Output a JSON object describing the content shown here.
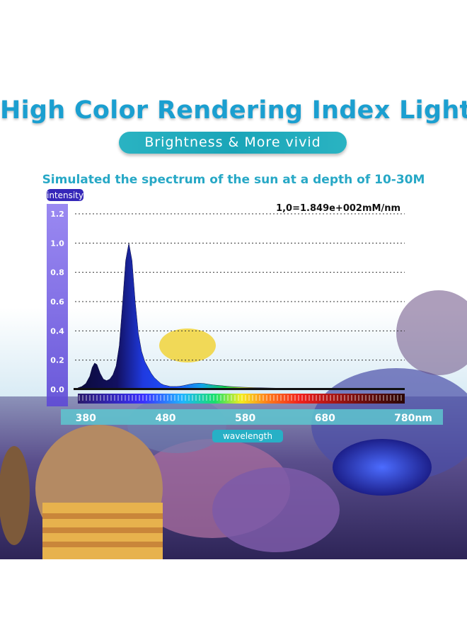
{
  "header": {
    "title": "High Color Rendering Index Lights",
    "tagline": "Brightness & More vivid",
    "subtitle": "Simulated the spectrum of the sun at a depth of 10-30M"
  },
  "colors": {
    "title": "#1b9fd0",
    "pill": "#1aa5b8",
    "intensity_bar": "#7b66e6",
    "peak_fill": "#1a2ad8"
  },
  "chart_data": {
    "type": "area",
    "title": "",
    "annotation": "1,0=1.849e+002mM/nm",
    "ylabel": "intensity",
    "xlabel": "wavelength",
    "x_unit_suffix": "nm",
    "ylim": [
      0,
      1.2
    ],
    "xlim": [
      370,
      780
    ],
    "yticks": [
      "0.0",
      "0.2",
      "0.4",
      "0.6",
      "0.8",
      "1.0",
      "1.2"
    ],
    "xticks": [
      "380",
      "480",
      "580",
      "680",
      "780"
    ],
    "grid": true,
    "series": [
      {
        "x": [
          370,
          375,
          380,
          385,
          388,
          391,
          394,
          398,
          402,
          406,
          410,
          414,
          418,
          422,
          426,
          430,
          434,
          438,
          442,
          446,
          450,
          454,
          458,
          462,
          466,
          470,
          474,
          478,
          482,
          486,
          490,
          494,
          498,
          502,
          506,
          510,
          516,
          522,
          528,
          534,
          540,
          550,
          560,
          575,
          590,
          605,
          620,
          640,
          660,
          680,
          700,
          720,
          740,
          760,
          780
        ],
        "y": [
          0.01,
          0.02,
          0.04,
          0.09,
          0.15,
          0.18,
          0.17,
          0.11,
          0.07,
          0.06,
          0.07,
          0.1,
          0.16,
          0.3,
          0.58,
          0.88,
          1.0,
          0.88,
          0.6,
          0.38,
          0.26,
          0.19,
          0.15,
          0.11,
          0.08,
          0.06,
          0.04,
          0.03,
          0.025,
          0.02,
          0.02,
          0.02,
          0.022,
          0.025,
          0.03,
          0.035,
          0.04,
          0.042,
          0.04,
          0.035,
          0.03,
          0.025,
          0.02,
          0.015,
          0.012,
          0.01,
          0.008,
          0.006,
          0.005,
          0.004,
          0.003,
          0.002,
          0.002,
          0.001,
          0.0
        ]
      }
    ]
  }
}
